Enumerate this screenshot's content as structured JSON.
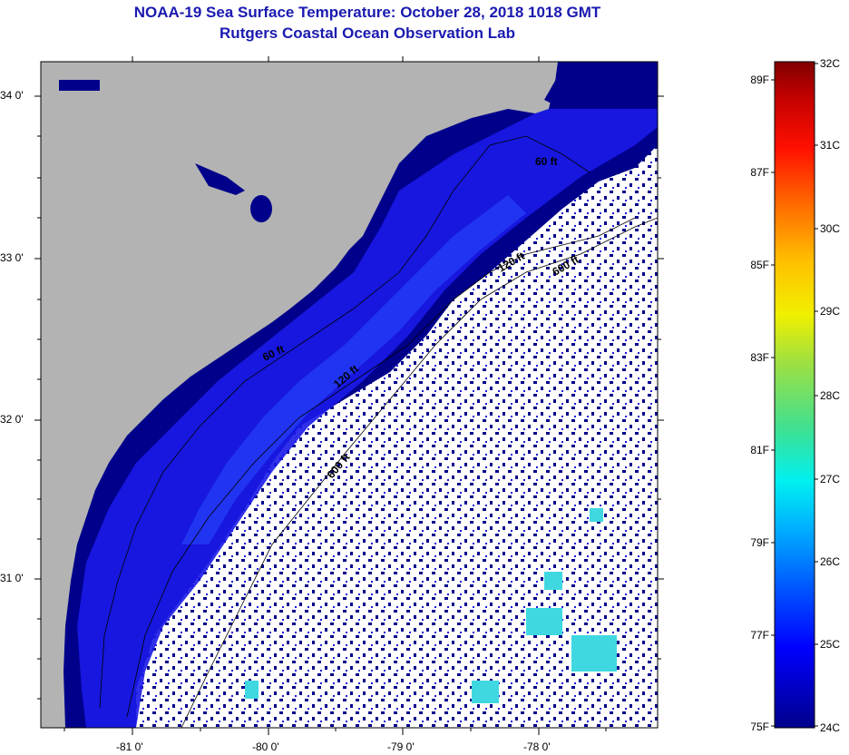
{
  "title": "NOAA-19 Sea Surface Temperature:  October 28, 2018 1018 GMT",
  "subtitle": "Rutgers Coastal Ocean Observation Lab",
  "lat_ticks": [
    "34 0'",
    "33 0'",
    "32 0'",
    "31 0'"
  ],
  "lon_ticks": [
    "-81 0'",
    "-80 0'",
    "-79 0'",
    "-78 0'"
  ],
  "contour_labels": [
    "60 ft",
    "60 ft",
    "120 ft",
    "600 ft",
    "120 ft",
    "600 ft"
  ],
  "colorbar": {
    "fahrenheit": [
      "89F",
      "87F",
      "85F",
      "83F",
      "81F",
      "79F",
      "77F",
      "75F"
    ],
    "celsius": [
      "32C",
      "31C",
      "30C",
      "29C",
      "28C",
      "27C",
      "26C",
      "25C",
      "24C"
    ]
  },
  "colors": {
    "title": "#1a1ab0",
    "land": "#b3b3b3",
    "cloud": "#ffffff",
    "ocean_near": "#1a1ae0",
    "ocean_deep": "#00008b",
    "warm_spot": "#40e0d0"
  }
}
